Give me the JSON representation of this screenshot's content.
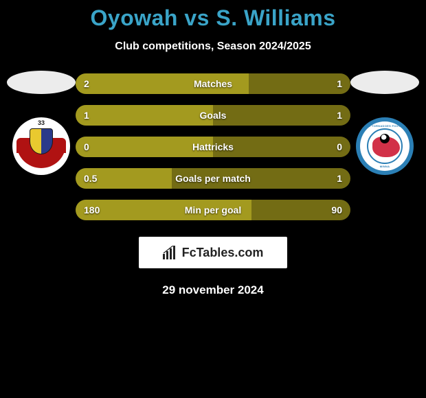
{
  "colors": {
    "background": "#000000",
    "title": "#3aa4c8",
    "text_light": "#ffffff",
    "brand_bg": "#ffffff",
    "brand_text": "#222222",
    "silhouette_left": "#ececec",
    "silhouette_right": "#ececec"
  },
  "header": {
    "title": "Oyowah vs S. Williams",
    "subtitle": "Club competitions, Season 2024/2025"
  },
  "left_player": {
    "name": "Oyowah",
    "club_badge": {
      "number": "33",
      "wing_color": "#b01212",
      "shield_left": "#e9c92f",
      "shield_right": "#2a3a8a"
    }
  },
  "right_player": {
    "name": "S. Williams",
    "club_badge": {
      "ring_color": "#2b7fb5",
      "shape_color": "#d23148",
      "top_text": "NIGER TORNADOES FOOTBALL CLUB",
      "bottom_text": "MINNA"
    }
  },
  "stats": {
    "bar_colors": {
      "left": "#a39a1f",
      "right": "#736c14"
    },
    "rows": [
      {
        "label": "Matches",
        "left_value": "2",
        "right_value": "1",
        "left_pct": 63,
        "right_pct": 37
      },
      {
        "label": "Goals",
        "left_value": "1",
        "right_value": "1",
        "left_pct": 50,
        "right_pct": 50
      },
      {
        "label": "Hattricks",
        "left_value": "0",
        "right_value": "0",
        "left_pct": 50,
        "right_pct": 50
      },
      {
        "label": "Goals per match",
        "left_value": "0.5",
        "right_value": "1",
        "left_pct": 35,
        "right_pct": 65
      },
      {
        "label": "Min per goal",
        "left_value": "180",
        "right_value": "90",
        "left_pct": 64,
        "right_pct": 36
      }
    ]
  },
  "brand": {
    "label": "FcTables.com"
  },
  "date": "29 november 2024"
}
